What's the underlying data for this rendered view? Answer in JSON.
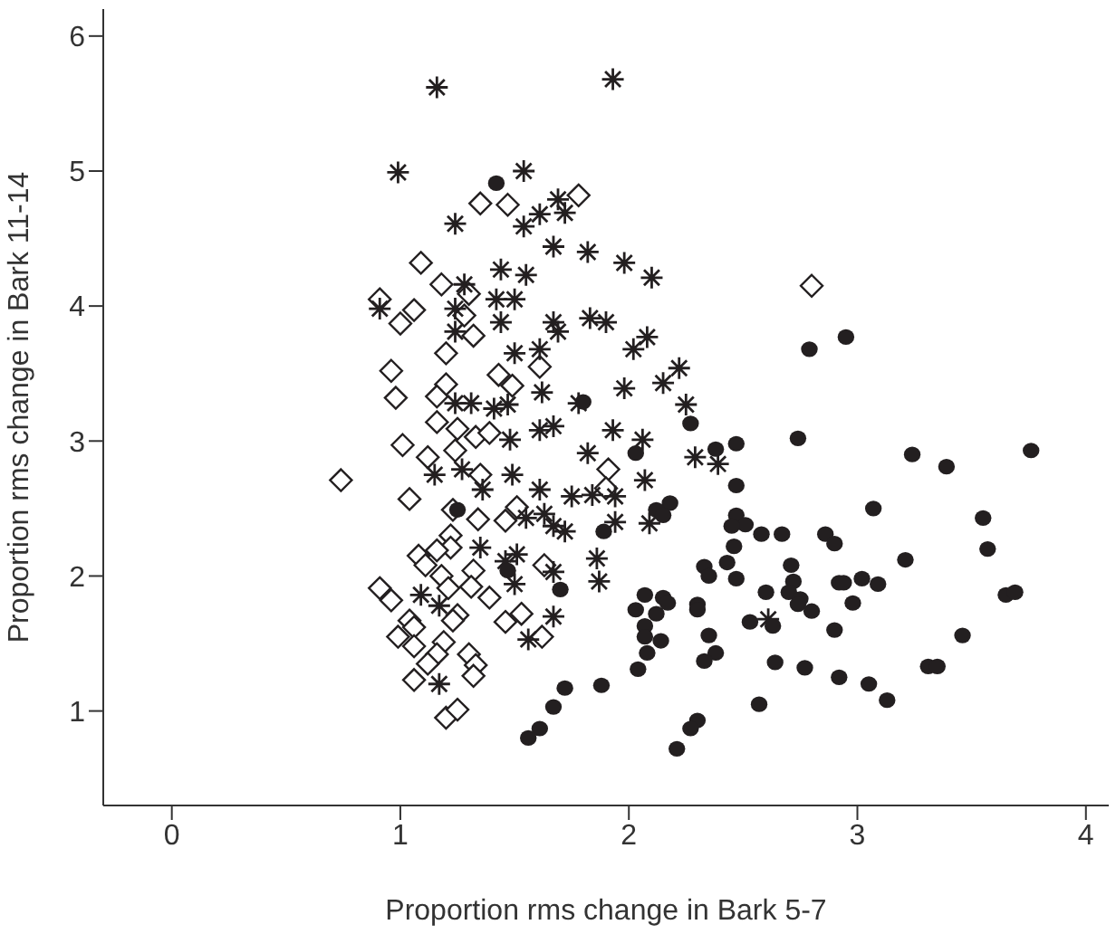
{
  "chart_data": {
    "type": "scatter",
    "xlabel": "Proportion rms change in Bark 5-7",
    "ylabel": "Proportion rms change in Bark 11-14",
    "xlim": [
      -0.3,
      4.1
    ],
    "xticks": [
      0,
      1,
      2,
      3,
      4
    ],
    "ylim": [
      0.3,
      6.2
    ],
    "yticks": [
      1,
      2,
      3,
      4,
      5,
      6
    ],
    "grid": false,
    "legend": false,
    "series": [
      {
        "marker": "diamond",
        "color": "#231f20",
        "x": [
          1.35,
          1.47,
          1.78,
          1.09,
          1.18,
          1.3,
          0.91,
          1.06,
          1.0,
          1.28,
          1.32,
          1.2,
          0.96,
          1.43,
          1.49,
          1.2,
          1.61,
          2.8,
          0.98,
          1.16,
          1.16,
          1.25,
          1.33,
          1.39,
          1.01,
          1.12,
          1.24,
          1.35,
          0.74,
          1.04,
          1.23,
          1.34,
          1.46,
          1.51,
          1.22,
          1.22,
          1.08,
          1.11,
          1.16,
          1.32,
          1.18,
          1.63,
          0.91,
          0.96,
          1.21,
          1.31,
          1.39,
          1.04,
          1.06,
          1.25,
          1.23,
          1.46,
          1.53,
          0.99,
          1.06,
          1.19,
          1.16,
          1.62,
          1.12,
          1.3,
          1.33,
          1.32,
          1.06,
          1.2,
          1.25,
          1.91,
          1.9
        ],
        "values": [
          4.76,
          4.75,
          4.82,
          4.32,
          4.16,
          4.09,
          4.05,
          3.97,
          3.87,
          3.93,
          3.78,
          3.65,
          3.52,
          3.49,
          3.41,
          3.42,
          3.55,
          4.15,
          3.32,
          3.33,
          3.14,
          3.09,
          3.03,
          3.06,
          2.97,
          2.88,
          2.93,
          2.75,
          2.71,
          2.57,
          2.49,
          2.42,
          2.41,
          2.51,
          2.3,
          2.21,
          2.15,
          2.08,
          2.19,
          2.04,
          2.0,
          2.08,
          1.91,
          1.82,
          1.91,
          1.92,
          1.84,
          1.67,
          1.62,
          1.71,
          1.67,
          1.66,
          1.72,
          1.55,
          1.48,
          1.51,
          1.42,
          1.55,
          1.35,
          1.42,
          1.34,
          1.26,
          1.23,
          0.95,
          1.01,
          2.79,
          2.65
        ]
      },
      {
        "marker": "cross",
        "color": "#231f20",
        "x": [
          1.16,
          0.99,
          1.54,
          1.24,
          1.69,
          1.61,
          1.72,
          1.54,
          1.67,
          1.44,
          1.55,
          1.28,
          0.91,
          1.24,
          1.42,
          1.5,
          1.24,
          1.44,
          1.67,
          1.69,
          1.5,
          1.61,
          1.93,
          1.82,
          1.98,
          2.1,
          1.83,
          1.9,
          2.08,
          2.02,
          2.22,
          2.15,
          1.98,
          1.24,
          1.31,
          1.41,
          1.47,
          1.62,
          1.78,
          1.61,
          1.67,
          1.48,
          1.15,
          1.27,
          1.36,
          1.49,
          1.61,
          1.75,
          1.55,
          1.63,
          1.67,
          1.72,
          1.35,
          1.51,
          1.46,
          1.67,
          1.5,
          1.09,
          1.17,
          1.67,
          1.56,
          1.17,
          2.25,
          1.93,
          2.06,
          1.82,
          2.29,
          2.39,
          2.07,
          1.84,
          1.94,
          1.94,
          2.09,
          1.86,
          1.87,
          2.61
        ],
        "values": [
          5.62,
          4.99,
          5.0,
          4.61,
          4.79,
          4.68,
          4.69,
          4.59,
          4.44,
          4.27,
          4.23,
          4.16,
          3.98,
          3.98,
          4.05,
          4.05,
          3.81,
          3.88,
          3.88,
          3.81,
          3.65,
          3.68,
          5.68,
          4.4,
          4.32,
          4.21,
          3.91,
          3.88,
          3.77,
          3.68,
          3.54,
          3.43,
          3.39,
          3.28,
          3.28,
          3.24,
          3.27,
          3.36,
          3.28,
          3.08,
          3.11,
          3.01,
          2.75,
          2.79,
          2.64,
          2.75,
          2.64,
          2.59,
          2.43,
          2.46,
          2.37,
          2.33,
          2.21,
          2.16,
          2.11,
          2.03,
          1.94,
          1.86,
          1.78,
          1.7,
          1.53,
          1.2,
          3.27,
          3.08,
          3.01,
          2.91,
          2.88,
          2.83,
          2.71,
          2.6,
          2.59,
          2.4,
          2.39,
          2.13,
          1.96,
          1.68
        ]
      },
      {
        "marker": "circle",
        "color": "#231f20",
        "x": [
          1.42,
          1.25,
          1.47,
          1.7,
          1.72,
          1.67,
          1.61,
          1.56,
          1.8,
          2.27,
          2.03,
          2.38,
          2.47,
          2.74,
          2.47,
          2.18,
          2.12,
          2.15,
          1.89,
          2.47,
          2.51,
          2.45,
          2.58,
          2.67,
          2.46,
          2.86,
          2.9,
          2.33,
          2.35,
          2.43,
          2.47,
          2.71,
          2.72,
          2.6,
          2.7,
          2.75,
          2.74,
          2.8,
          2.92,
          2.07,
          2.03,
          2.12,
          2.15,
          2.17,
          2.3,
          2.3,
          2.07,
          2.07,
          2.14,
          2.08,
          2.35,
          2.38,
          2.33,
          2.53,
          2.63,
          2.9,
          2.64,
          2.77,
          2.92,
          2.04,
          1.88,
          2.57,
          2.3,
          2.27,
          2.21,
          2.95,
          3.24,
          3.39,
          3.76,
          3.07,
          3.55,
          3.57,
          3.21,
          3.02,
          3.09,
          2.94,
          2.98,
          3.65,
          3.69,
          3.46,
          3.31,
          3.35,
          3.05,
          3.13,
          2.79
        ],
        "values": [
          4.91,
          2.49,
          2.04,
          1.9,
          1.17,
          1.03,
          0.87,
          0.8,
          3.29,
          3.13,
          2.91,
          2.94,
          2.98,
          3.02,
          2.67,
          2.54,
          2.49,
          2.45,
          2.33,
          2.45,
          2.38,
          2.37,
          2.31,
          2.31,
          2.22,
          2.31,
          2.24,
          2.07,
          2.0,
          2.1,
          1.98,
          2.08,
          1.96,
          1.88,
          1.88,
          1.83,
          1.79,
          1.74,
          1.95,
          1.86,
          1.75,
          1.72,
          1.84,
          1.8,
          1.79,
          1.75,
          1.63,
          1.55,
          1.52,
          1.43,
          1.56,
          1.43,
          1.37,
          1.66,
          1.63,
          1.6,
          1.36,
          1.32,
          1.25,
          1.31,
          1.19,
          1.05,
          0.93,
          0.87,
          0.72,
          3.77,
          2.9,
          2.81,
          2.93,
          2.5,
          2.43,
          2.2,
          2.12,
          1.98,
          1.94,
          1.95,
          1.8,
          1.86,
          1.88,
          1.56,
          1.33,
          1.33,
          1.2,
          1.08,
          3.68
        ]
      }
    ]
  }
}
